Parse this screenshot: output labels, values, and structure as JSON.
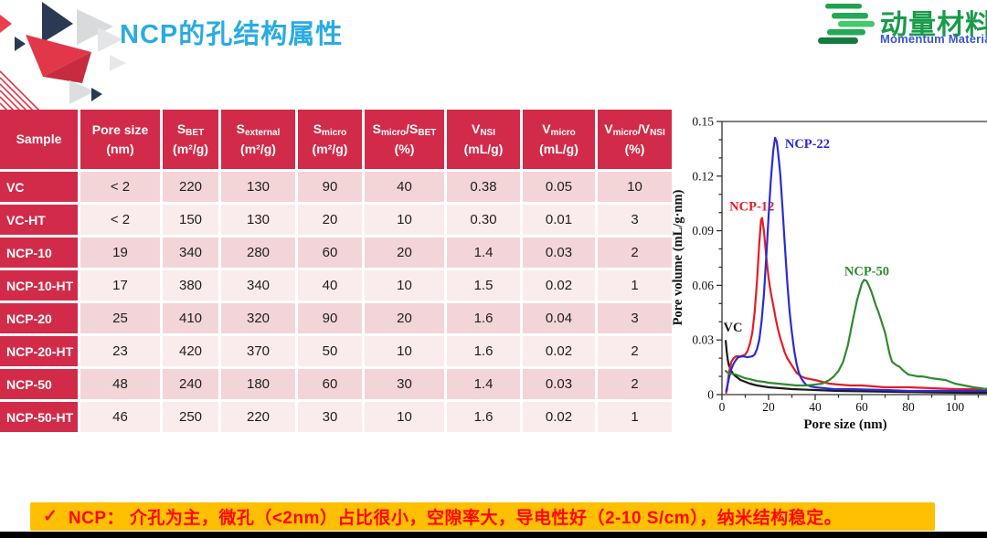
{
  "slide": {
    "title": "NCP的孔结构属性",
    "logo": {
      "cn": "动量材料",
      "en": "Momentum Materials"
    },
    "banner": {
      "check": "✓",
      "text": "NCP： 介孔为主，微孔（<2nm）占比很小，空隙率大，导电性好（2-10 S/cm），纳米结构稳定。"
    }
  },
  "colors": {
    "title_blue": "#29ABE2",
    "table_red": "#D22B4A",
    "row_pink_dark": "#F3D5D8",
    "row_pink_light": "#FAEBEC",
    "banner_bg": "#FFC003",
    "banner_text": "#FF0600",
    "logo_green": "#189B4A",
    "logo_blue": "#3A55CC"
  },
  "table": {
    "columns": [
      {
        "segments": [
          {
            "t": "Sample"
          }
        ],
        "unit": ""
      },
      {
        "segments": [
          {
            "t": "Pore size"
          }
        ],
        "unit": "(nm)"
      },
      {
        "segments": [
          {
            "t": "S"
          },
          {
            "s": "BET"
          }
        ],
        "unit": "(m²/g)"
      },
      {
        "segments": [
          {
            "t": "S"
          },
          {
            "s": "external"
          }
        ],
        "unit": "(m²/g)"
      },
      {
        "segments": [
          {
            "t": "S"
          },
          {
            "s": "micro"
          }
        ],
        "unit": "(m²/g)"
      },
      {
        "segments": [
          {
            "t": "S"
          },
          {
            "s": "micro"
          },
          {
            "t": "/S"
          },
          {
            "s": "BET"
          }
        ],
        "unit": "(%)"
      },
      {
        "segments": [
          {
            "t": "V"
          },
          {
            "s": "NSI"
          }
        ],
        "unit": "(mL/g)"
      },
      {
        "segments": [
          {
            "t": "V"
          },
          {
            "s": "micro"
          }
        ],
        "unit": "(mL/g)"
      },
      {
        "segments": [
          {
            "t": "V"
          },
          {
            "s": "micro"
          },
          {
            "t": "/V"
          },
          {
            "s": "NSI"
          }
        ],
        "unit": "(%)"
      }
    ],
    "rows": [
      {
        "sample": "VC",
        "values": [
          "< 2",
          "220",
          "130",
          "90",
          "40",
          "0.38",
          "0.05",
          "10"
        ]
      },
      {
        "sample": "VC-HT",
        "values": [
          "< 2",
          "150",
          "130",
          "20",
          "10",
          "0.30",
          "0.01",
          "3"
        ]
      },
      {
        "sample": "NCP-10",
        "values": [
          "19",
          "340",
          "280",
          "60",
          "20",
          "1.4",
          "0.03",
          "2"
        ]
      },
      {
        "sample": "NCP-10-HT",
        "values": [
          "17",
          "380",
          "340",
          "40",
          "10",
          "1.5",
          "0.02",
          "1"
        ]
      },
      {
        "sample": "NCP-20",
        "values": [
          "25",
          "410",
          "320",
          "90",
          "20",
          "1.6",
          "0.04",
          "3"
        ]
      },
      {
        "sample": "NCP-20-HT",
        "values": [
          "23",
          "420",
          "370",
          "50",
          "10",
          "1.6",
          "0.02",
          "2"
        ]
      },
      {
        "sample": "NCP-50",
        "values": [
          "48",
          "240",
          "180",
          "60",
          "30",
          "1.4",
          "0.03",
          "2"
        ]
      },
      {
        "sample": "NCP-50-HT",
        "values": [
          "46",
          "250",
          "220",
          "30",
          "10",
          "1.6",
          "0.02",
          "1"
        ]
      }
    ]
  },
  "chart_data": {
    "type": "line",
    "title": "",
    "xlabel": "Pore size (nm)",
    "ylabel": "Pore volume (mL/g·nm)",
    "xlim": [
      0,
      115
    ],
    "ylim": [
      0,
      0.15
    ],
    "grid": false,
    "legend": "inline-labels",
    "x_ticks": [
      0,
      20,
      40,
      60,
      80,
      100
    ],
    "x_tick_labels": [
      "0",
      "20",
      "40",
      "60",
      "80",
      "100"
    ],
    "x_minor_ticks": [
      10,
      30,
      50,
      70,
      90,
      110
    ],
    "y_ticks": [
      0,
      0.03,
      0.06,
      0.09,
      0.12,
      0.15
    ],
    "y_tick_labels": [
      "0",
      "0.03",
      "0.06",
      "0.09",
      "0.12",
      "0.15"
    ],
    "y_minor_ticks": [
      0.01,
      0.02,
      0.04,
      0.05,
      0.07,
      0.08,
      0.1,
      0.11,
      0.13,
      0.14
    ],
    "series": [
      {
        "name": "VC",
        "color": "#1a1a1a",
        "label_at": [
          0.6,
          0.0345
        ],
        "points": [
          [
            1.6,
            0.0295
          ],
          [
            2,
            0.024
          ],
          [
            2.5,
            0.019
          ],
          [
            3,
            0.016
          ],
          [
            4,
            0.013
          ],
          [
            5,
            0.011
          ],
          [
            6,
            0.01
          ],
          [
            8,
            0.008
          ],
          [
            10,
            0.007
          ],
          [
            12,
            0.006
          ],
          [
            15,
            0.005
          ],
          [
            20,
            0.004
          ],
          [
            25,
            0.0035
          ],
          [
            30,
            0.003
          ],
          [
            40,
            0.0025
          ],
          [
            50,
            0.002
          ],
          [
            60,
            0.0018
          ],
          [
            75,
            0.0015
          ],
          [
            90,
            0.0012
          ],
          [
            105,
            0.001
          ],
          [
            114,
            0.001
          ]
        ]
      },
      {
        "name": "NCP-12",
        "color": "#E51C23",
        "label_at": [
          3.2,
          0.101
        ],
        "points": [
          [
            1.8,
            0.001
          ],
          [
            2.2,
            0.003
          ],
          [
            3,
            0.012
          ],
          [
            4,
            0.018
          ],
          [
            5,
            0.02
          ],
          [
            6,
            0.021
          ],
          [
            8,
            0.021
          ],
          [
            10,
            0.022
          ],
          [
            11,
            0.024
          ],
          [
            12,
            0.028
          ],
          [
            13,
            0.034
          ],
          [
            14,
            0.045
          ],
          [
            15,
            0.062
          ],
          [
            16,
            0.083
          ],
          [
            16.8,
            0.096
          ],
          [
            17.2,
            0.097
          ],
          [
            18,
            0.09
          ],
          [
            19,
            0.076
          ],
          [
            20,
            0.064
          ],
          [
            21,
            0.056
          ],
          [
            22,
            0.049
          ],
          [
            23,
            0.042
          ],
          [
            24,
            0.036
          ],
          [
            25,
            0.031
          ],
          [
            26,
            0.027
          ],
          [
            27,
            0.023
          ],
          [
            28,
            0.02
          ],
          [
            30,
            0.016
          ],
          [
            32,
            0.012
          ],
          [
            34,
            0.01
          ],
          [
            36,
            0.009
          ],
          [
            38,
            0.0085
          ],
          [
            40,
            0.008
          ],
          [
            43,
            0.007
          ],
          [
            46,
            0.006
          ],
          [
            50,
            0.0055
          ],
          [
            55,
            0.005
          ],
          [
            60,
            0.005
          ],
          [
            65,
            0.0045
          ],
          [
            70,
            0.004
          ],
          [
            80,
            0.004
          ],
          [
            90,
            0.0035
          ],
          [
            100,
            0.003
          ],
          [
            107,
            0.003
          ],
          [
            114,
            0.003
          ]
        ]
      },
      {
        "name": "NCP-22",
        "color": "#2B2BD5",
        "label_at": [
          27,
          0.1355
        ],
        "points": [
          [
            1.8,
            0.002
          ],
          [
            2.5,
            0.006
          ],
          [
            3,
            0.009
          ],
          [
            4,
            0.014
          ],
          [
            5,
            0.017
          ],
          [
            6,
            0.019
          ],
          [
            7,
            0.0205
          ],
          [
            9,
            0.021
          ],
          [
            11,
            0.0205
          ],
          [
            13,
            0.021
          ],
          [
            14,
            0.022
          ],
          [
            15,
            0.025
          ],
          [
            16,
            0.03
          ],
          [
            17,
            0.04
          ],
          [
            18,
            0.055
          ],
          [
            19,
            0.075
          ],
          [
            20,
            0.098
          ],
          [
            21,
            0.118
          ],
          [
            22,
            0.134
          ],
          [
            22.8,
            0.141
          ],
          [
            23.5,
            0.139
          ],
          [
            24,
            0.134
          ],
          [
            25,
            0.121
          ],
          [
            26,
            0.102
          ],
          [
            27,
            0.082
          ],
          [
            28,
            0.062
          ],
          [
            29,
            0.046
          ],
          [
            30,
            0.034
          ],
          [
            31,
            0.024
          ],
          [
            32,
            0.017
          ],
          [
            33,
            0.012
          ],
          [
            34,
            0.009
          ],
          [
            35,
            0.007
          ],
          [
            36,
            0.0055
          ],
          [
            38,
            0.0045
          ],
          [
            40,
            0.004
          ],
          [
            44,
            0.0035
          ],
          [
            48,
            0.003
          ],
          [
            55,
            0.003
          ],
          [
            60,
            0.0028
          ],
          [
            70,
            0.0025
          ],
          [
            80,
            0.002
          ],
          [
            90,
            0.002
          ],
          [
            100,
            0.002
          ],
          [
            114,
            0.002
          ]
        ]
      },
      {
        "name": "NCP-50",
        "color": "#2E8B2E",
        "label_at": [
          52.5,
          0.0655
        ],
        "points": [
          [
            1.6,
            0.013
          ],
          [
            2.5,
            0.012
          ],
          [
            4,
            0.0115
          ],
          [
            6,
            0.011
          ],
          [
            8,
            0.01
          ],
          [
            10,
            0.009
          ],
          [
            12,
            0.0085
          ],
          [
            15,
            0.0075
          ],
          [
            18,
            0.007
          ],
          [
            20,
            0.0065
          ],
          [
            24,
            0.006
          ],
          [
            28,
            0.0055
          ],
          [
            32,
            0.005
          ],
          [
            36,
            0.005
          ],
          [
            40,
            0.0055
          ],
          [
            43,
            0.006
          ],
          [
            46,
            0.008
          ],
          [
            48,
            0.01
          ],
          [
            50,
            0.013
          ],
          [
            52,
            0.018
          ],
          [
            54,
            0.027
          ],
          [
            56,
            0.04
          ],
          [
            58,
            0.052
          ],
          [
            60,
            0.061
          ],
          [
            61,
            0.063
          ],
          [
            62,
            0.0625
          ],
          [
            63,
            0.06
          ],
          [
            64,
            0.057
          ],
          [
            65,
            0.053
          ],
          [
            66,
            0.049
          ],
          [
            67,
            0.046
          ],
          [
            68,
            0.042
          ],
          [
            69,
            0.038
          ],
          [
            70,
            0.034
          ],
          [
            71,
            0.028
          ],
          [
            72,
            0.022
          ],
          [
            73,
            0.018
          ],
          [
            74,
            0.017
          ],
          [
            75,
            0.016
          ],
          [
            76,
            0.0155
          ],
          [
            78,
            0.013
          ],
          [
            80,
            0.011
          ],
          [
            82,
            0.0105
          ],
          [
            84,
            0.01
          ],
          [
            86,
            0.01
          ],
          [
            88,
            0.0095
          ],
          [
            90,
            0.009
          ],
          [
            93,
            0.0085
          ],
          [
            96,
            0.008
          ],
          [
            100,
            0.006
          ],
          [
            104,
            0.005
          ],
          [
            108,
            0.004
          ],
          [
            111,
            0.0035
          ],
          [
            113,
            0.003
          ],
          [
            114,
            0.0035
          ]
        ]
      }
    ]
  }
}
